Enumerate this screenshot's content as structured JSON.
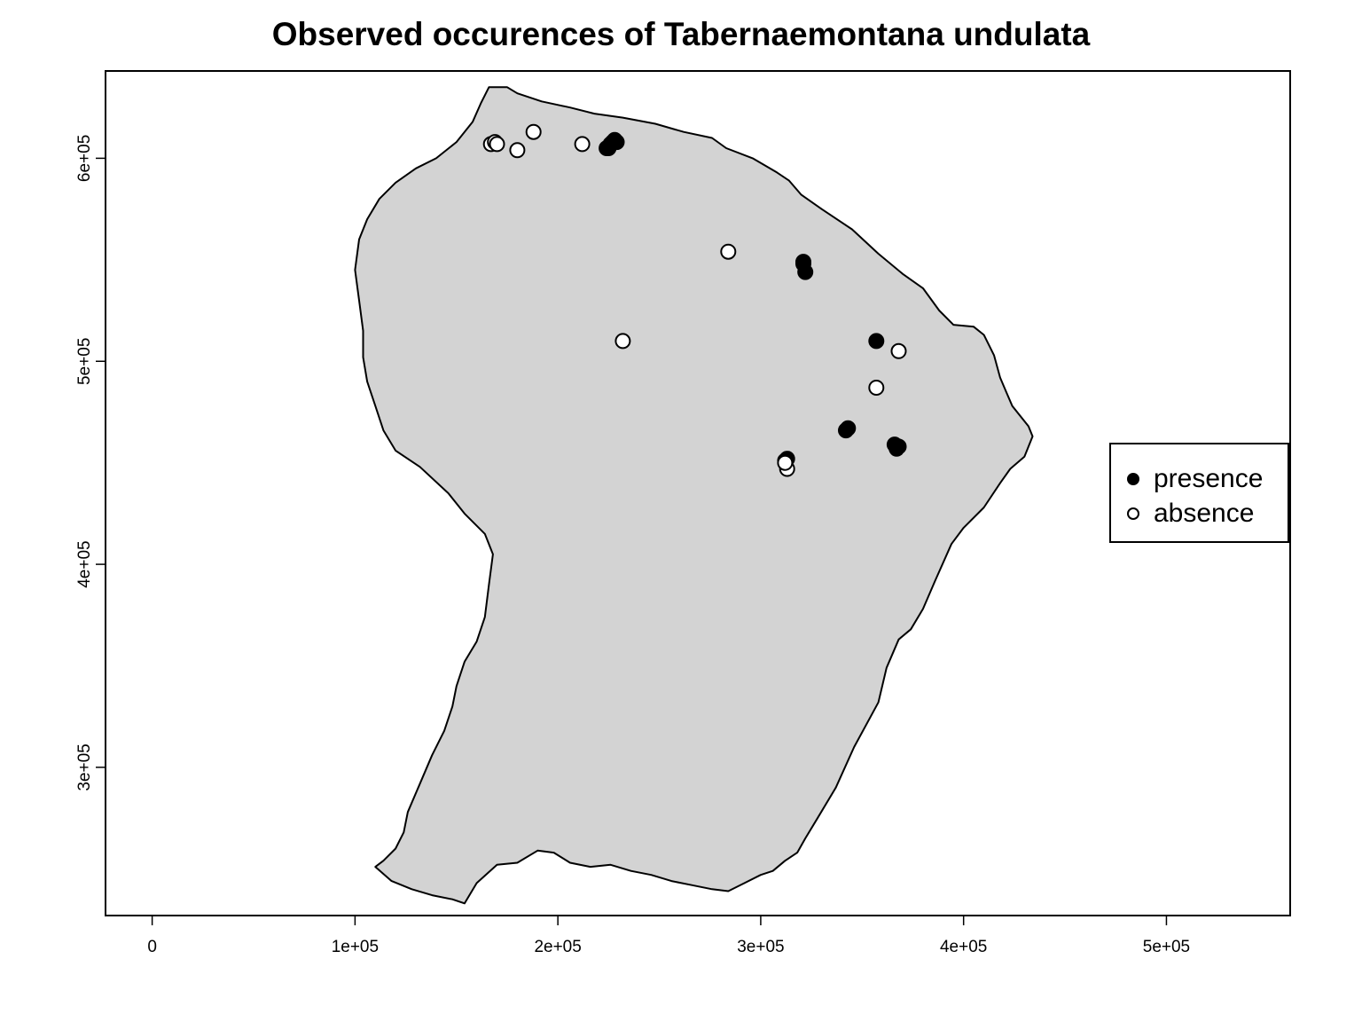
{
  "title": "Observed occurences of Tabernaemontana undulata",
  "colors": {
    "land": "#d3d3d3",
    "outline": "#000000",
    "presence": "#000000",
    "absence": "#ffffff"
  },
  "chart_data": {
    "type": "scatter",
    "title": "Observed occurences of Tabernaemontana undulata",
    "xlabel": "",
    "ylabel": "",
    "xlim": [
      -23000,
      561000
    ],
    "ylim": [
      227000,
      643000
    ],
    "x_ticks": [
      {
        "value": 0,
        "label": "0"
      },
      {
        "value": 100000,
        "label": "1e+05"
      },
      {
        "value": 200000,
        "label": "2e+05"
      },
      {
        "value": 300000,
        "label": "3e+05"
      },
      {
        "value": 400000,
        "label": "4e+05"
      },
      {
        "value": 500000,
        "label": "5e+05"
      }
    ],
    "y_ticks": [
      {
        "value": 300000,
        "label": "3e+05"
      },
      {
        "value": 400000,
        "label": "4e+05"
      },
      {
        "value": 500000,
        "label": "5e+05"
      },
      {
        "value": 600000,
        "label": "6e+05"
      }
    ],
    "legend": {
      "position": "right",
      "entries": [
        {
          "name": "presence",
          "symbol": "filled-circle"
        },
        {
          "name": "absence",
          "symbol": "open-circle"
        }
      ]
    },
    "land_outline": [
      [
        166000,
        635000
      ],
      [
        175000,
        635000
      ],
      [
        180000,
        632000
      ],
      [
        192000,
        628000
      ],
      [
        206000,
        625000
      ],
      [
        218000,
        622000
      ],
      [
        232000,
        620000
      ],
      [
        248000,
        617000
      ],
      [
        262000,
        613000
      ],
      [
        276000,
        610000
      ],
      [
        283000,
        605000
      ],
      [
        296000,
        600000
      ],
      [
        308000,
        593000
      ],
      [
        314000,
        589000
      ],
      [
        320000,
        582000
      ],
      [
        330000,
        575000
      ],
      [
        345000,
        565000
      ],
      [
        358000,
        553000
      ],
      [
        370000,
        543000
      ],
      [
        380000,
        536000
      ],
      [
        388000,
        525000
      ],
      [
        395000,
        518000
      ],
      [
        405000,
        517000
      ],
      [
        410000,
        513000
      ],
      [
        415000,
        503000
      ],
      [
        418000,
        492000
      ],
      [
        421000,
        485000
      ],
      [
        424000,
        478000
      ],
      [
        432000,
        468000
      ],
      [
        434000,
        463000
      ],
      [
        430000,
        453000
      ],
      [
        423000,
        447000
      ],
      [
        418000,
        440000
      ],
      [
        410000,
        428000
      ],
      [
        400000,
        418000
      ],
      [
        394000,
        410000
      ],
      [
        386000,
        392000
      ],
      [
        380000,
        378000
      ],
      [
        374000,
        368000
      ],
      [
        368000,
        363000
      ],
      [
        362000,
        349000
      ],
      [
        358000,
        332000
      ],
      [
        346000,
        310000
      ],
      [
        337000,
        290000
      ],
      [
        328000,
        275000
      ],
      [
        322000,
        265000
      ],
      [
        318000,
        258000
      ],
      [
        312000,
        254000
      ],
      [
        306000,
        249000
      ],
      [
        300000,
        247000
      ],
      [
        292000,
        243000
      ],
      [
        284000,
        239000
      ],
      [
        276000,
        240000
      ],
      [
        266000,
        242000
      ],
      [
        256000,
        244000
      ],
      [
        246000,
        247000
      ],
      [
        236000,
        249000
      ],
      [
        226000,
        252000
      ],
      [
        216000,
        251000
      ],
      [
        206000,
        253000
      ],
      [
        198000,
        258000
      ],
      [
        190000,
        259000
      ],
      [
        180000,
        253000
      ],
      [
        170000,
        252000
      ],
      [
        160000,
        243000
      ],
      [
        154000,
        233000
      ],
      [
        148000,
        235000
      ],
      [
        138000,
        237000
      ],
      [
        128000,
        240000
      ],
      [
        118000,
        244000
      ],
      [
        110000,
        251000
      ],
      [
        114000,
        254000
      ],
      [
        120000,
        260000
      ],
      [
        124000,
        268000
      ],
      [
        126000,
        278000
      ],
      [
        132000,
        292000
      ],
      [
        138000,
        306000
      ],
      [
        144000,
        318000
      ],
      [
        148000,
        330000
      ],
      [
        150000,
        340000
      ],
      [
        154000,
        352000
      ],
      [
        160000,
        362000
      ],
      [
        164000,
        374000
      ],
      [
        166000,
        390000
      ],
      [
        168000,
        405000
      ],
      [
        164000,
        415000
      ],
      [
        154000,
        425000
      ],
      [
        146000,
        435000
      ],
      [
        132000,
        448000
      ],
      [
        120000,
        456000
      ],
      [
        114000,
        466000
      ],
      [
        110000,
        478000
      ],
      [
        106000,
        490000
      ],
      [
        104000,
        502000
      ],
      [
        104000,
        515000
      ],
      [
        102000,
        530000
      ],
      [
        100000,
        545000
      ],
      [
        102000,
        560000
      ],
      [
        106000,
        570000
      ],
      [
        112000,
        580000
      ],
      [
        120000,
        588000
      ],
      [
        130000,
        595000
      ],
      [
        140000,
        600000
      ],
      [
        150000,
        608000
      ],
      [
        158000,
        618000
      ],
      [
        162000,
        627000
      ]
    ],
    "series": [
      {
        "name": "presence",
        "marker": "filled-circle",
        "points": [
          [
            228000,
            609000
          ],
          [
            227000,
            608000
          ],
          [
            225000,
            605000
          ],
          [
            226000,
            607000
          ],
          [
            229000,
            608000
          ],
          [
            224000,
            605000
          ],
          [
            321000,
            549000
          ],
          [
            322000,
            544000
          ],
          [
            321000,
            548000
          ],
          [
            357000,
            510000
          ],
          [
            343000,
            467000
          ],
          [
            342000,
            466000
          ],
          [
            366000,
            459000
          ],
          [
            368000,
            458000
          ],
          [
            367000,
            457000
          ],
          [
            313000,
            452000
          ],
          [
            312000,
            451000
          ]
        ]
      },
      {
        "name": "absence",
        "marker": "open-circle",
        "points": [
          [
            167000,
            607000
          ],
          [
            169000,
            608000
          ],
          [
            170000,
            607000
          ],
          [
            180000,
            604000
          ],
          [
            188000,
            613000
          ],
          [
            212000,
            607000
          ],
          [
            284000,
            554000
          ],
          [
            232000,
            510000
          ],
          [
            368000,
            505000
          ],
          [
            357000,
            487000
          ],
          [
            313000,
            447000
          ],
          [
            312000,
            450000
          ]
        ]
      }
    ]
  }
}
